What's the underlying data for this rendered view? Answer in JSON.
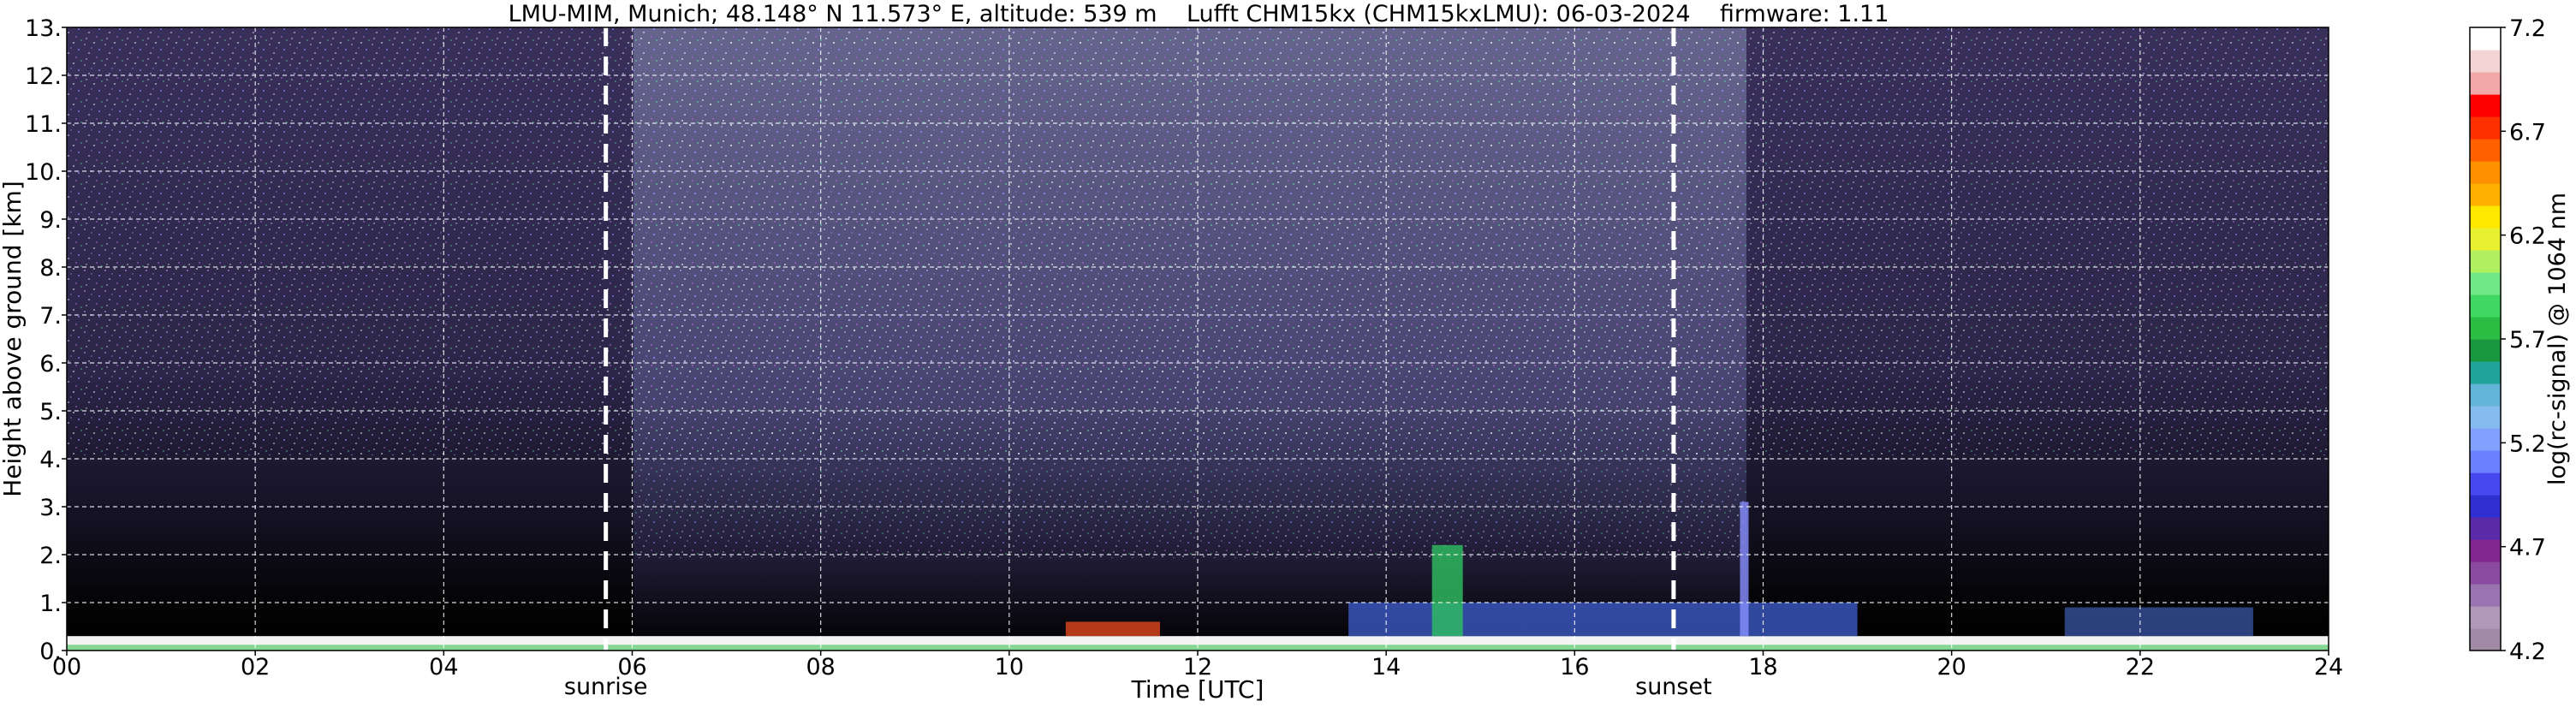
{
  "chart_data": [
    {
      "type": "heatmap",
      "title": "LMU-MIM, Munich; 48.148° N 11.573° E, altitude: 539 m    Lufft CHM15kx (CHM15kxLMU): 06-03-2024    firmware: 1.11",
      "xlabel": "Time [UTC]",
      "ylabel": "Height above ground [km]",
      "x_ticks": [
        "00",
        "02",
        "04",
        "06",
        "08",
        "10",
        "12",
        "14",
        "16",
        "18",
        "20",
        "22",
        "24"
      ],
      "y_ticks": [
        "0.",
        "1.",
        "2.",
        "3.",
        "4.",
        "5.",
        "6.",
        "7.",
        "8.",
        "9.",
        "10.",
        "11.",
        "12.",
        "13."
      ],
      "xlim": [
        0,
        24
      ],
      "ylim": [
        0,
        13
      ],
      "grid": true,
      "annotations": [
        {
          "label": "sunrise",
          "x": 5.72
        },
        {
          "label": "sunset",
          "x": 17.05
        }
      ],
      "features": {
        "boundary_layer_top_km": 0.3,
        "afternoon_aerosol_top_km": 1.0,
        "plume_peak": {
          "x": 14.65,
          "top_km": 2.2
        },
        "plume_peak_2": {
          "x": 17.8,
          "top_km": 3.1
        }
      }
    },
    {
      "type": "colorbar",
      "label": "log(rc-signal) @ 1064 nm",
      "range": [
        4.2,
        7.2
      ],
      "ticks": [
        "4.2",
        "4.7",
        "5.2",
        "5.7",
        "6.2",
        "6.7",
        "7.2"
      ],
      "colors": [
        "#a08aa6",
        "#b098b8",
        "#9a74b0",
        "#8a4aa0",
        "#80288e",
        "#5a2aa8",
        "#3030d0",
        "#4848f0",
        "#6a80ff",
        "#84a0ff",
        "#84bcf0",
        "#64b4d8",
        "#20a49a",
        "#189640",
        "#2cbe44",
        "#40d860",
        "#70e888",
        "#b0f060",
        "#e8f030",
        "#ffe800",
        "#ffb000",
        "#ff9000",
        "#ff6000",
        "#ff3000",
        "#ff0000",
        "#f0a8a8",
        "#f4d4d4",
        "#ffffff"
      ]
    }
  ]
}
